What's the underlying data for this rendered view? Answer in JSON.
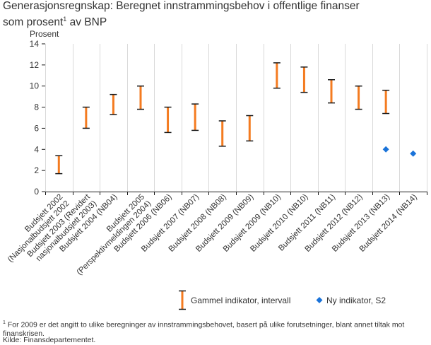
{
  "title": {
    "line1": "Generasjonsregnskap: Beregnet innstrammingsbehov i offentlige finanser",
    "line2_before": "som prosent",
    "line2_sup": "1",
    "line2_after": " av BNP"
  },
  "chart_data": {
    "type": "range-bar",
    "ylabel": "Prosent",
    "ylim": [
      0,
      14
    ],
    "yticks": [
      0,
      2,
      4,
      6,
      8,
      10,
      12,
      14
    ],
    "grid": "vertical",
    "categories": [
      [
        "Budsjett 2002",
        "(Nasjonalbudsjett 2002"
      ],
      [
        "Budsjett 2003 (Revidert",
        "nasjonalbudsjett 2003)"
      ],
      [
        "Budsjett 2004 (NB04)"
      ],
      [
        "Budsjett 2005",
        "(Perspektivmeldingen 2004)"
      ],
      [
        "Budsjett 2006 (NB06)"
      ],
      [
        "Budsjett 2007 (NB07)"
      ],
      [
        "Budsjett 2008 (NB08)"
      ],
      [
        "Budsjett 2009 (NB09)"
      ],
      [
        "Budsjett 2009 (NB10)"
      ],
      [
        "Budsjett 2010 (NB10)"
      ],
      [
        "Budsjett 2011 (NB11)"
      ],
      [
        "Budsjett 2012 (NB12)"
      ],
      [
        "Budsjett 2013 (NB13)"
      ],
      [
        "Budsjett 2014 (NB14)"
      ]
    ],
    "series": [
      {
        "name": "Gammel indikator, intervall",
        "type": "range",
        "color": "#f47b20",
        "whisker_color": "#1a1a1a",
        "low": [
          1.7,
          6.0,
          7.3,
          7.8,
          5.6,
          5.8,
          4.3,
          4.8,
          9.8,
          9.4,
          8.4,
          7.8,
          7.4,
          null
        ],
        "high": [
          3.4,
          8.0,
          9.2,
          10.0,
          8.0,
          8.3,
          6.7,
          7.2,
          12.2,
          11.8,
          10.6,
          10.0,
          9.6,
          null
        ]
      },
      {
        "name": "Ny indikator, S2",
        "type": "scatter",
        "marker": "diamond",
        "color": "#1a73d9",
        "values": [
          null,
          null,
          null,
          null,
          null,
          null,
          null,
          null,
          null,
          null,
          null,
          null,
          4.0,
          3.6
        ]
      }
    ]
  },
  "footnote": {
    "sup": "1",
    "text": " For 2009 er det angitt to ulike beregninger av innstrammingsbehovet, basert på ulike forutsetninger, blant annet tiltak mot finanskrisen."
  },
  "source": "Kilde: Finansdepartementet."
}
